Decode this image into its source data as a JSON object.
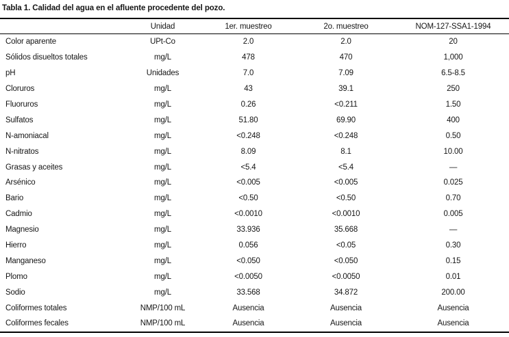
{
  "table": {
    "title": "Tabla 1. Calidad del agua en el afluente procedente del pozo.",
    "columns": [
      "",
      "Unidad",
      "1er. muestreo",
      "2o. muestreo",
      "NOM-127-SSA1-1994"
    ],
    "rows": [
      [
        "Color aparente",
        "UPt-Co",
        "2.0",
        "2.0",
        "20"
      ],
      [
        "Sólidos disueltos totales",
        "mg/L",
        "478",
        "470",
        "1,000"
      ],
      [
        "pH",
        "Unidades",
        "7.0",
        "7.09",
        "6.5-8.5"
      ],
      [
        "Cloruros",
        "mg/L",
        "43",
        "39.1",
        "250"
      ],
      [
        "Fluoruros",
        "mg/L",
        "0.26",
        "<0.211",
        "1.50"
      ],
      [
        "Sulfatos",
        "mg/L",
        "51.80",
        "69.90",
        "400"
      ],
      [
        "N-amoniacal",
        "mg/L",
        "<0.248",
        "<0.248",
        "0.50"
      ],
      [
        "N-nitratos",
        "mg/L",
        "8.09",
        "8.1",
        "10.00"
      ],
      [
        "Grasas y aceites",
        "mg/L",
        "<5.4",
        "<5.4",
        "—"
      ],
      [
        "Arsénico",
        "mg/L",
        "<0.005",
        "<0.005",
        "0.025"
      ],
      [
        "Bario",
        "mg/L",
        "<0.50",
        "<0.50",
        "0.70"
      ],
      [
        "Cadmio",
        "mg/L",
        "<0.0010",
        "<0.0010",
        "0.005"
      ],
      [
        "Magnesio",
        "mg/L",
        "33.936",
        "35.668",
        "—"
      ],
      [
        "Hierro",
        "mg/L",
        "0.056",
        "<0.05",
        "0.30"
      ],
      [
        "Manganeso",
        "mg/L",
        "<0.050",
        "<0.050",
        "0.15"
      ],
      [
        "Plomo",
        "mg/L",
        "<0.0050",
        "<0.0050",
        "0.01"
      ],
      [
        "Sodio",
        "mg/L",
        "33.568",
        "34.872",
        "200.00"
      ],
      [
        "Coliformes totales",
        "NMP/100 mL",
        "Ausencia",
        "Ausencia",
        "Ausencia"
      ],
      [
        "Coliformes fecales",
        "NMP/100 mL",
        "Ausencia",
        "Ausencia",
        "Ausencia"
      ]
    ]
  }
}
